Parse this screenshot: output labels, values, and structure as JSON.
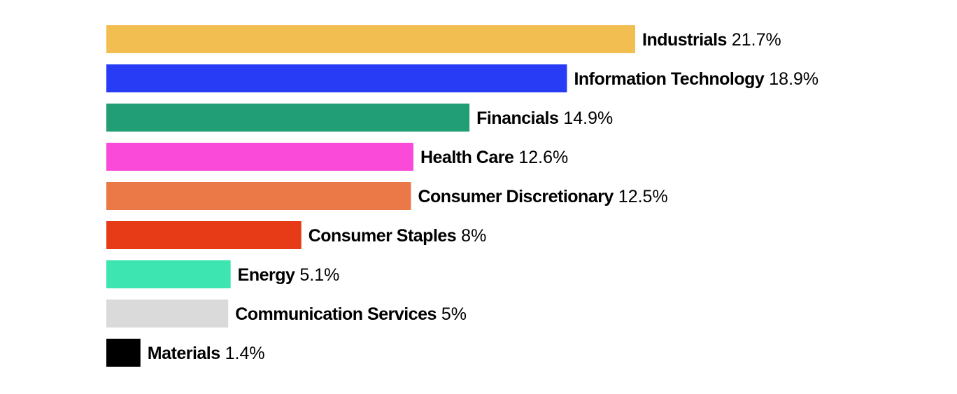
{
  "chart_data": {
    "type": "bar",
    "orientation": "horizontal",
    "title": "",
    "xlabel": "",
    "ylabel": "",
    "grid": false,
    "legend": "none",
    "value_suffix": "%",
    "categories": [
      "Industrials",
      "Information Technology",
      "Financials",
      "Health Care",
      "Consumer Discretionary",
      "Consumer Staples",
      "Energy",
      "Communication Services",
      "Materials"
    ],
    "values": [
      21.7,
      18.9,
      14.9,
      12.6,
      12.5,
      8,
      5.1,
      5,
      1.4
    ],
    "value_labels": [
      "21.7%",
      "18.9%",
      "14.9%",
      "12.6%",
      "12.5%",
      "8%",
      "5.1%",
      "5%",
      "1.4%"
    ],
    "colors": [
      "#F3BE51",
      "#283CF5",
      "#219E76",
      "#F94ADA",
      "#EB7847",
      "#E73B17",
      "#3DE5B1",
      "#DADADA",
      "#000000"
    ],
    "xlim": [
      0,
      21.7
    ]
  }
}
